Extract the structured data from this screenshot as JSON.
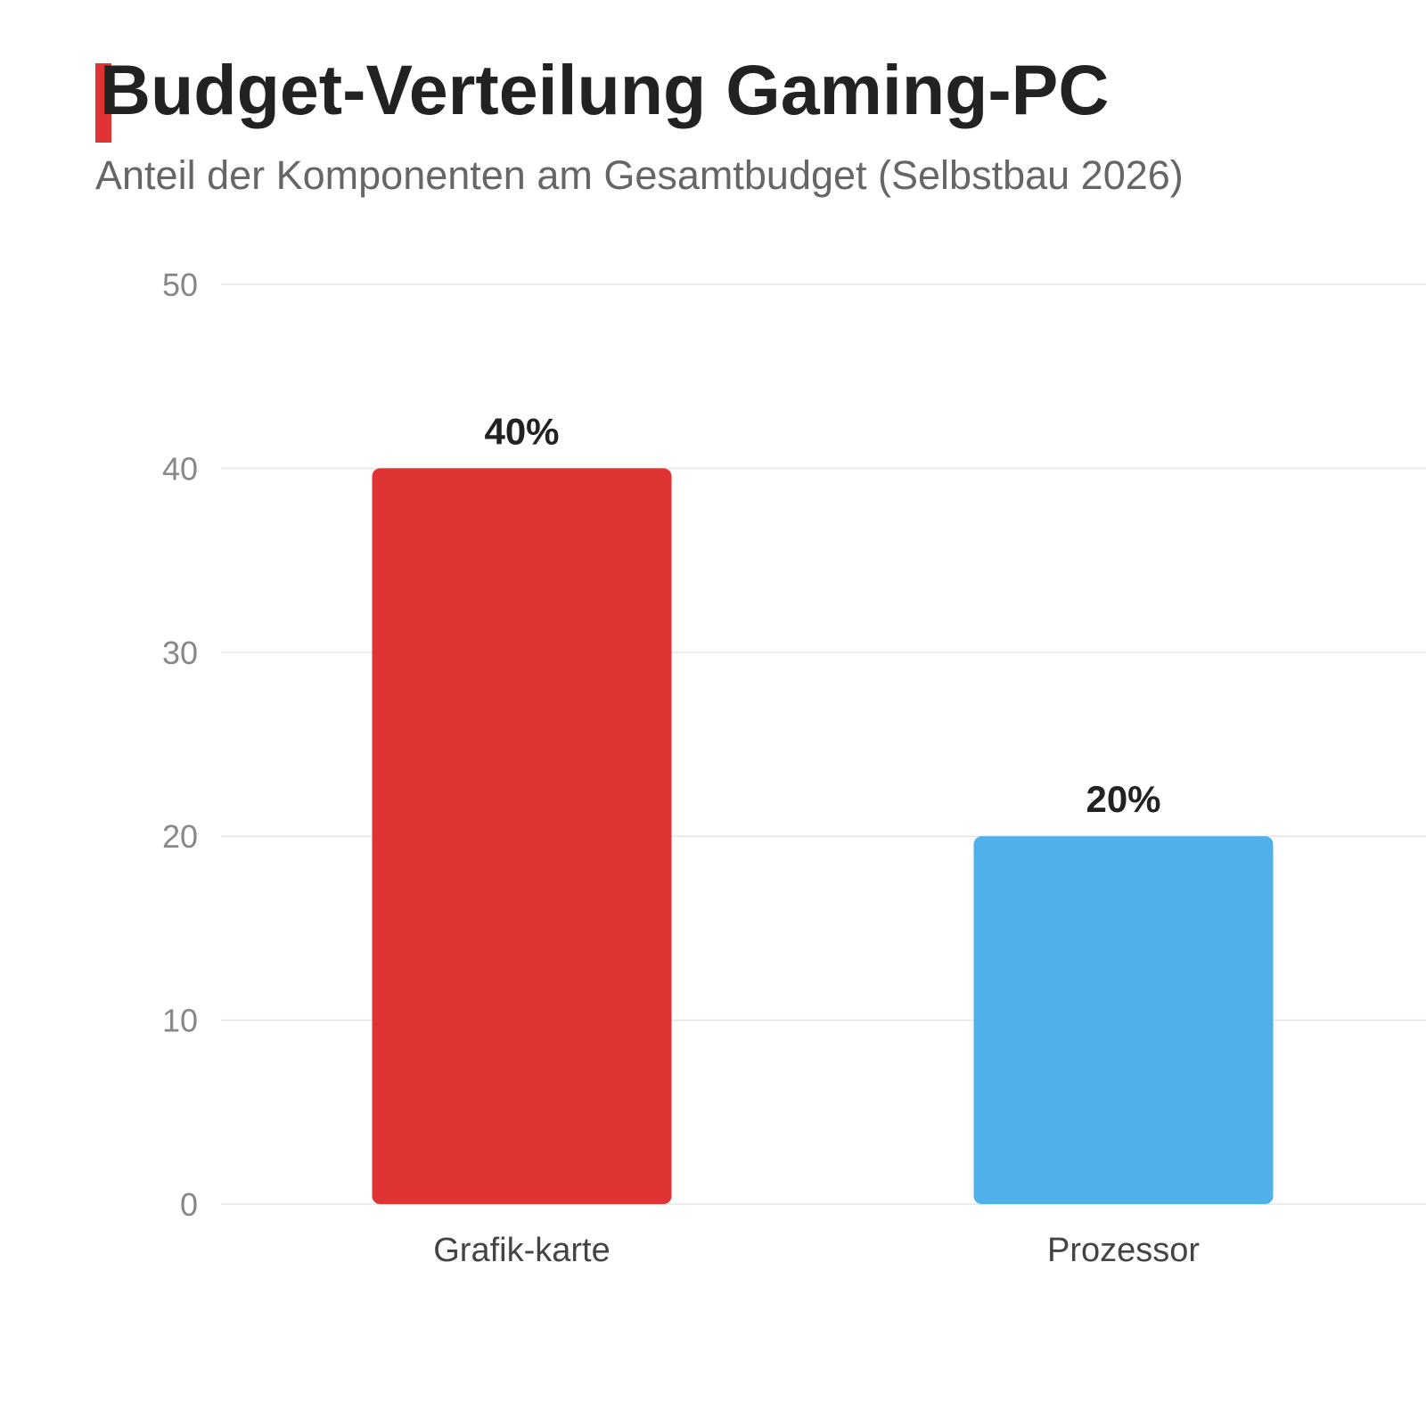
{
  "chart_data": {
    "type": "bar",
    "title": "Budget-Verteilung Gaming-PC",
    "subtitle": "Anteil der Komponenten am Gesamtbudget (Selbstbau 2026)",
    "categories": [
      "Grafik-karte",
      "Prozessor"
    ],
    "values": [
      40,
      20
    ],
    "value_labels": [
      "40%",
      "20%"
    ],
    "bar_colors": [
      "#e03434",
      "#4fb0ea"
    ],
    "yticks": [
      0,
      10,
      20,
      30,
      40,
      50
    ],
    "ylim": [
      0,
      50
    ],
    "grid": true,
    "legend": "none"
  },
  "colors": {
    "accent": "#e03434",
    "title": "#222222",
    "subtitle": "#666666",
    "grid": "#e6e6e6"
  }
}
